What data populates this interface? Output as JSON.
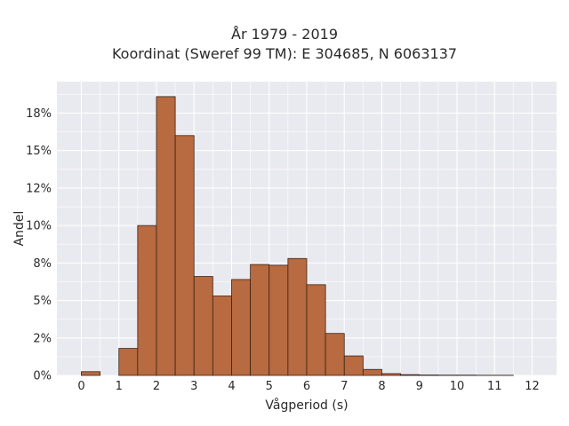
{
  "chart_data": {
    "type": "bar",
    "title_lines": [
      "År 1979 - 2019",
      "Koordinat (Sweref 99 TM): E 304685, N 6063137"
    ],
    "xlabel": "Vågperiod (s)",
    "ylabel": "Andel",
    "x_tick_labels": [
      "0",
      "1",
      "2",
      "3",
      "4",
      "5",
      "6",
      "7",
      "8",
      "9",
      "10",
      "11",
      "12"
    ],
    "y_tick_labels": [
      "0%",
      "2%",
      "5%",
      "8%",
      "10%",
      "12%",
      "15%",
      "18%"
    ],
    "y_tick_values": [
      0,
      2.5,
      5,
      7.5,
      10,
      12.5,
      15,
      17.5
    ],
    "xlim": [
      -0.65,
      12.65
    ],
    "ylim": [
      0,
      19.6
    ],
    "bin_width": 0.5,
    "bins_left": [
      0,
      1,
      1.5,
      2,
      2.5,
      3,
      3.5,
      4,
      4.5,
      5,
      5.5,
      6,
      6.5,
      7,
      7.5,
      8,
      8.5,
      9,
      9.5,
      10,
      10.5,
      11
    ],
    "values": [
      0.25,
      1.8,
      10.0,
      18.6,
      16.0,
      6.6,
      5.3,
      6.4,
      7.4,
      7.35,
      7.8,
      6.05,
      2.8,
      1.3,
      0.4,
      0.12,
      0.05,
      0.03,
      0.02,
      0.02,
      0.01,
      0.01
    ],
    "grid": true,
    "colors": {
      "bar_fill": "#b86a40",
      "bar_stroke": "#3b2416",
      "plot_bg": "#e9e9f0",
      "grid": "#ffffff"
    }
  }
}
